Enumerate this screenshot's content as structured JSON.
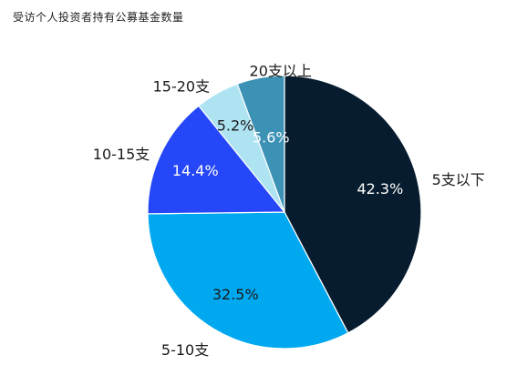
{
  "chart_data": {
    "type": "pie",
    "title": "受访个人投资者持有公募基金数量",
    "slices": [
      {
        "label": "5支以下",
        "value": 42.3,
        "display": "42.3%",
        "color": "#071c2f",
        "text_color": "#ffffff"
      },
      {
        "label": "5-10支",
        "value": 32.5,
        "display": "32.5%",
        "color": "#00a8f0",
        "text_color": "#1a1a1a"
      },
      {
        "label": "10-15支",
        "value": 14.4,
        "display": "14.4%",
        "color": "#2547f8",
        "text_color": "#ffffff"
      },
      {
        "label": "15-20支",
        "value": 5.2,
        "display": "5.2%",
        "color": "#aee3f2",
        "text_color": "#1a1a1a"
      },
      {
        "label": "20支以上",
        "value": 5.6,
        "display": "5.6%",
        "color": "#3b92b5",
        "text_color": "#ffffff"
      }
    ],
    "start": "top",
    "direction": "clockwise",
    "legend": "none"
  }
}
